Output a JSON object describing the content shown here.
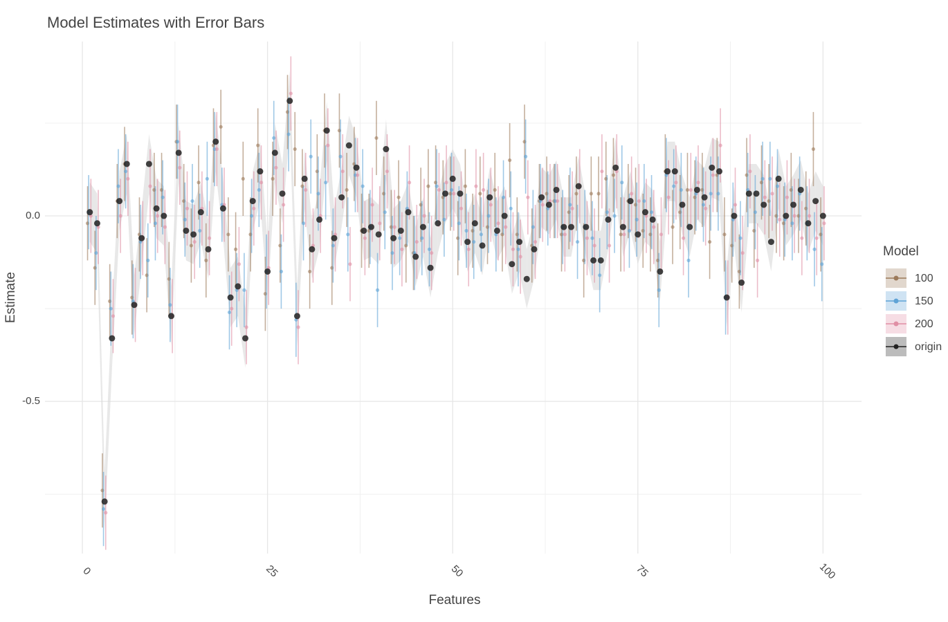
{
  "chart_data": {
    "type": "errorbar",
    "title": "Model Estimates with Error Bars",
    "x_label": "Features",
    "y_label": "Estimate",
    "legend_title": "Model",
    "legend_position": "right",
    "grid": true,
    "xlim": [
      -5.05,
      105.2
    ],
    "ylim": [
      -0.91,
      0.47
    ],
    "xticks": [
      0,
      25,
      50,
      75,
      100
    ],
    "yticks": [
      {
        "value": 0,
        "label": "0.0"
      },
      {
        "value": -0.5,
        "label": "-0.5"
      }
    ],
    "x": [
      1,
      2,
      3,
      4,
      5,
      6,
      7,
      8,
      9,
      10,
      11,
      12,
      13,
      14,
      15,
      16,
      17,
      18,
      19,
      20,
      21,
      22,
      23,
      24,
      25,
      26,
      27,
      28,
      29,
      30,
      31,
      32,
      33,
      34,
      35,
      36,
      37,
      38,
      39,
      40,
      41,
      42,
      43,
      44,
      45,
      46,
      47,
      48,
      49,
      50,
      51,
      52,
      53,
      54,
      55,
      56,
      57,
      58,
      59,
      60,
      61,
      62,
      63,
      64,
      65,
      66,
      67,
      68,
      69,
      70,
      71,
      72,
      73,
      74,
      75,
      76,
      77,
      78,
      79,
      80,
      81,
      82,
      83,
      84,
      85,
      86,
      87,
      88,
      89,
      90,
      91,
      92,
      93,
      94,
      95,
      96,
      97,
      98,
      99,
      100
    ],
    "series": [
      {
        "name": "100",
        "color": "#9c7a5a",
        "error": 0.1,
        "values": [
          -0.02,
          -0.14,
          -0.74,
          -0.23,
          0.04,
          0.14,
          -0.22,
          -0.05,
          -0.16,
          0.07,
          0.07,
          -0.17,
          0.2,
          0.04,
          -0.08,
          0.09,
          -0.12,
          0.19,
          0.24,
          -0.05,
          -0.09,
          0.1,
          -0.05,
          0.19,
          -0.21,
          0.1,
          -0.08,
          0.28,
          0.18,
          0.08,
          -0.15,
          0.12,
          0.23,
          -0.14,
          0.23,
          0.07,
          0.14,
          -0.04,
          -0.04,
          0.21,
          0.06,
          -0.03,
          0.05,
          -0.08,
          -0.1,
          0.03,
          0.08,
          0.09,
          0.05,
          0.06,
          -0.06,
          0.08,
          -0.04,
          0.06,
          -0.03,
          0.07,
          -0.05,
          0.15,
          -0.05,
          0.2,
          -0.08,
          0.04,
          0.06,
          0.04,
          -0.05,
          0.01,
          0.06,
          -0.12,
          0.06,
          0.06,
          0.1,
          0.11,
          -0.05,
          0.04,
          0.03,
          -0.04,
          -0.05,
          -0.12,
          0.12,
          -0.03,
          0.01,
          0.07,
          0.05,
          0.07,
          -0.07,
          0.11,
          -0.05,
          -0.08,
          -0.15,
          0.11,
          -0.04,
          0.09,
          0.04,
          0.0,
          -0.02,
          0.07,
          0.0,
          0.02,
          0.18,
          -0.05
        ]
      },
      {
        "name": "150",
        "color": "#5fa3d6",
        "error": 0.1,
        "values": [
          0.01,
          -0.1,
          -0.79,
          -0.25,
          0.08,
          0.12,
          -0.23,
          -0.07,
          -0.12,
          -0.02,
          0.05,
          -0.24,
          0.2,
          -0.01,
          0.04,
          -0.04,
          0.1,
          0.18,
          0.03,
          -0.26,
          -0.2,
          -0.2,
          0.0,
          0.07,
          -0.15,
          0.21,
          -0.15,
          0.22,
          -0.28,
          -0.02,
          0.16,
          0.06,
          0.09,
          -0.08,
          0.16,
          -0.05,
          0.11,
          0.08,
          -0.03,
          -0.2,
          0.01,
          -0.1,
          -0.06,
          0.02,
          -0.1,
          -0.06,
          -0.09,
          0.08,
          -0.01,
          0.07,
          -0.02,
          -0.04,
          -0.07,
          -0.05,
          0.0,
          -0.05,
          0.05,
          0.02,
          -0.09,
          0.16,
          -0.03,
          0.04,
          0.02,
          0.04,
          -0.03,
          0.03,
          -0.07,
          -0.03,
          -0.06,
          -0.16,
          0.01,
          0.0,
          0.09,
          -0.04,
          -0.01,
          0.04,
          0.01,
          -0.2,
          0.11,
          0.08,
          0.07,
          -0.12,
          0.06,
          0.03,
          0.06,
          0.06,
          -0.22,
          -0.01,
          -0.06,
          0.07,
          0.01,
          0.1,
          0.1,
          0.08,
          -0.01,
          -0.02,
          0.06,
          -0.02,
          -0.09,
          -0.13
        ]
      },
      {
        "name": "200",
        "color": "#e08fa5",
        "error": 0.1,
        "values": [
          0.0,
          -0.03,
          -0.8,
          -0.27,
          0.0,
          0.1,
          -0.24,
          -0.06,
          0.08,
          0.0,
          -0.03,
          -0.27,
          0.13,
          0.02,
          -0.07,
          0.02,
          -0.06,
          0.18,
          0.03,
          -0.25,
          -0.13,
          -0.3,
          0.02,
          0.09,
          -0.14,
          0.13,
          0.03,
          0.33,
          -0.3,
          0.07,
          -0.08,
          0.0,
          0.19,
          -0.05,
          0.12,
          -0.13,
          0.11,
          -0.06,
          0.03,
          -0.02,
          0.12,
          -0.03,
          -0.09,
          0.09,
          -0.07,
          0.0,
          -0.1,
          0.07,
          0.09,
          0.06,
          0.02,
          -0.09,
          0.08,
          0.07,
          0.03,
          -0.02,
          -0.03,
          -0.09,
          -0.11,
          0.05,
          -0.07,
          0.03,
          0.04,
          0.04,
          -0.05,
          0.02,
          0.08,
          -0.06,
          -0.08,
          0.12,
          -0.08,
          0.12,
          -0.05,
          0.06,
          0.04,
          0.0,
          -0.03,
          -0.05,
          0.05,
          0.09,
          -0.06,
          0.07,
          0.09,
          0.02,
          0.11,
          0.19,
          -0.22,
          0.03,
          -0.1,
          0.12,
          -0.12,
          0.05,
          0.06,
          -0.01,
          0.05,
          0.0,
          -0.06,
          0.0,
          -0.06,
          -0.02
        ]
      },
      {
        "name": "origin",
        "color": "#222222",
        "error": 0.08,
        "values": [
          0.01,
          -0.02,
          -0.77,
          -0.33,
          0.04,
          0.14,
          -0.24,
          -0.06,
          0.14,
          0.02,
          0.0,
          -0.27,
          0.17,
          -0.04,
          -0.05,
          0.01,
          -0.09,
          0.2,
          0.02,
          -0.22,
          -0.19,
          -0.33,
          0.04,
          0.12,
          -0.15,
          0.17,
          0.06,
          0.31,
          -0.27,
          0.1,
          -0.09,
          -0.01,
          0.23,
          -0.06,
          0.05,
          0.19,
          0.13,
          -0.04,
          -0.03,
          -0.05,
          0.18,
          -0.06,
          -0.04,
          0.01,
          -0.11,
          -0.03,
          -0.14,
          -0.02,
          0.06,
          0.1,
          0.06,
          -0.07,
          -0.02,
          -0.08,
          0.05,
          -0.04,
          0.0,
          -0.13,
          -0.07,
          -0.17,
          -0.09,
          0.05,
          0.03,
          0.07,
          -0.03,
          -0.03,
          0.08,
          -0.03,
          -0.12,
          -0.12,
          -0.01,
          0.13,
          -0.03,
          0.04,
          -0.05,
          0.01,
          -0.01,
          -0.15,
          0.12,
          0.12,
          0.03,
          -0.03,
          0.07,
          0.05,
          0.13,
          0.12,
          -0.22,
          0.0,
          -0.18,
          0.06,
          0.06,
          0.03,
          -0.07,
          0.1,
          0.0,
          0.03,
          0.07,
          -0.02,
          0.04,
          0.0
        ]
      }
    ]
  }
}
